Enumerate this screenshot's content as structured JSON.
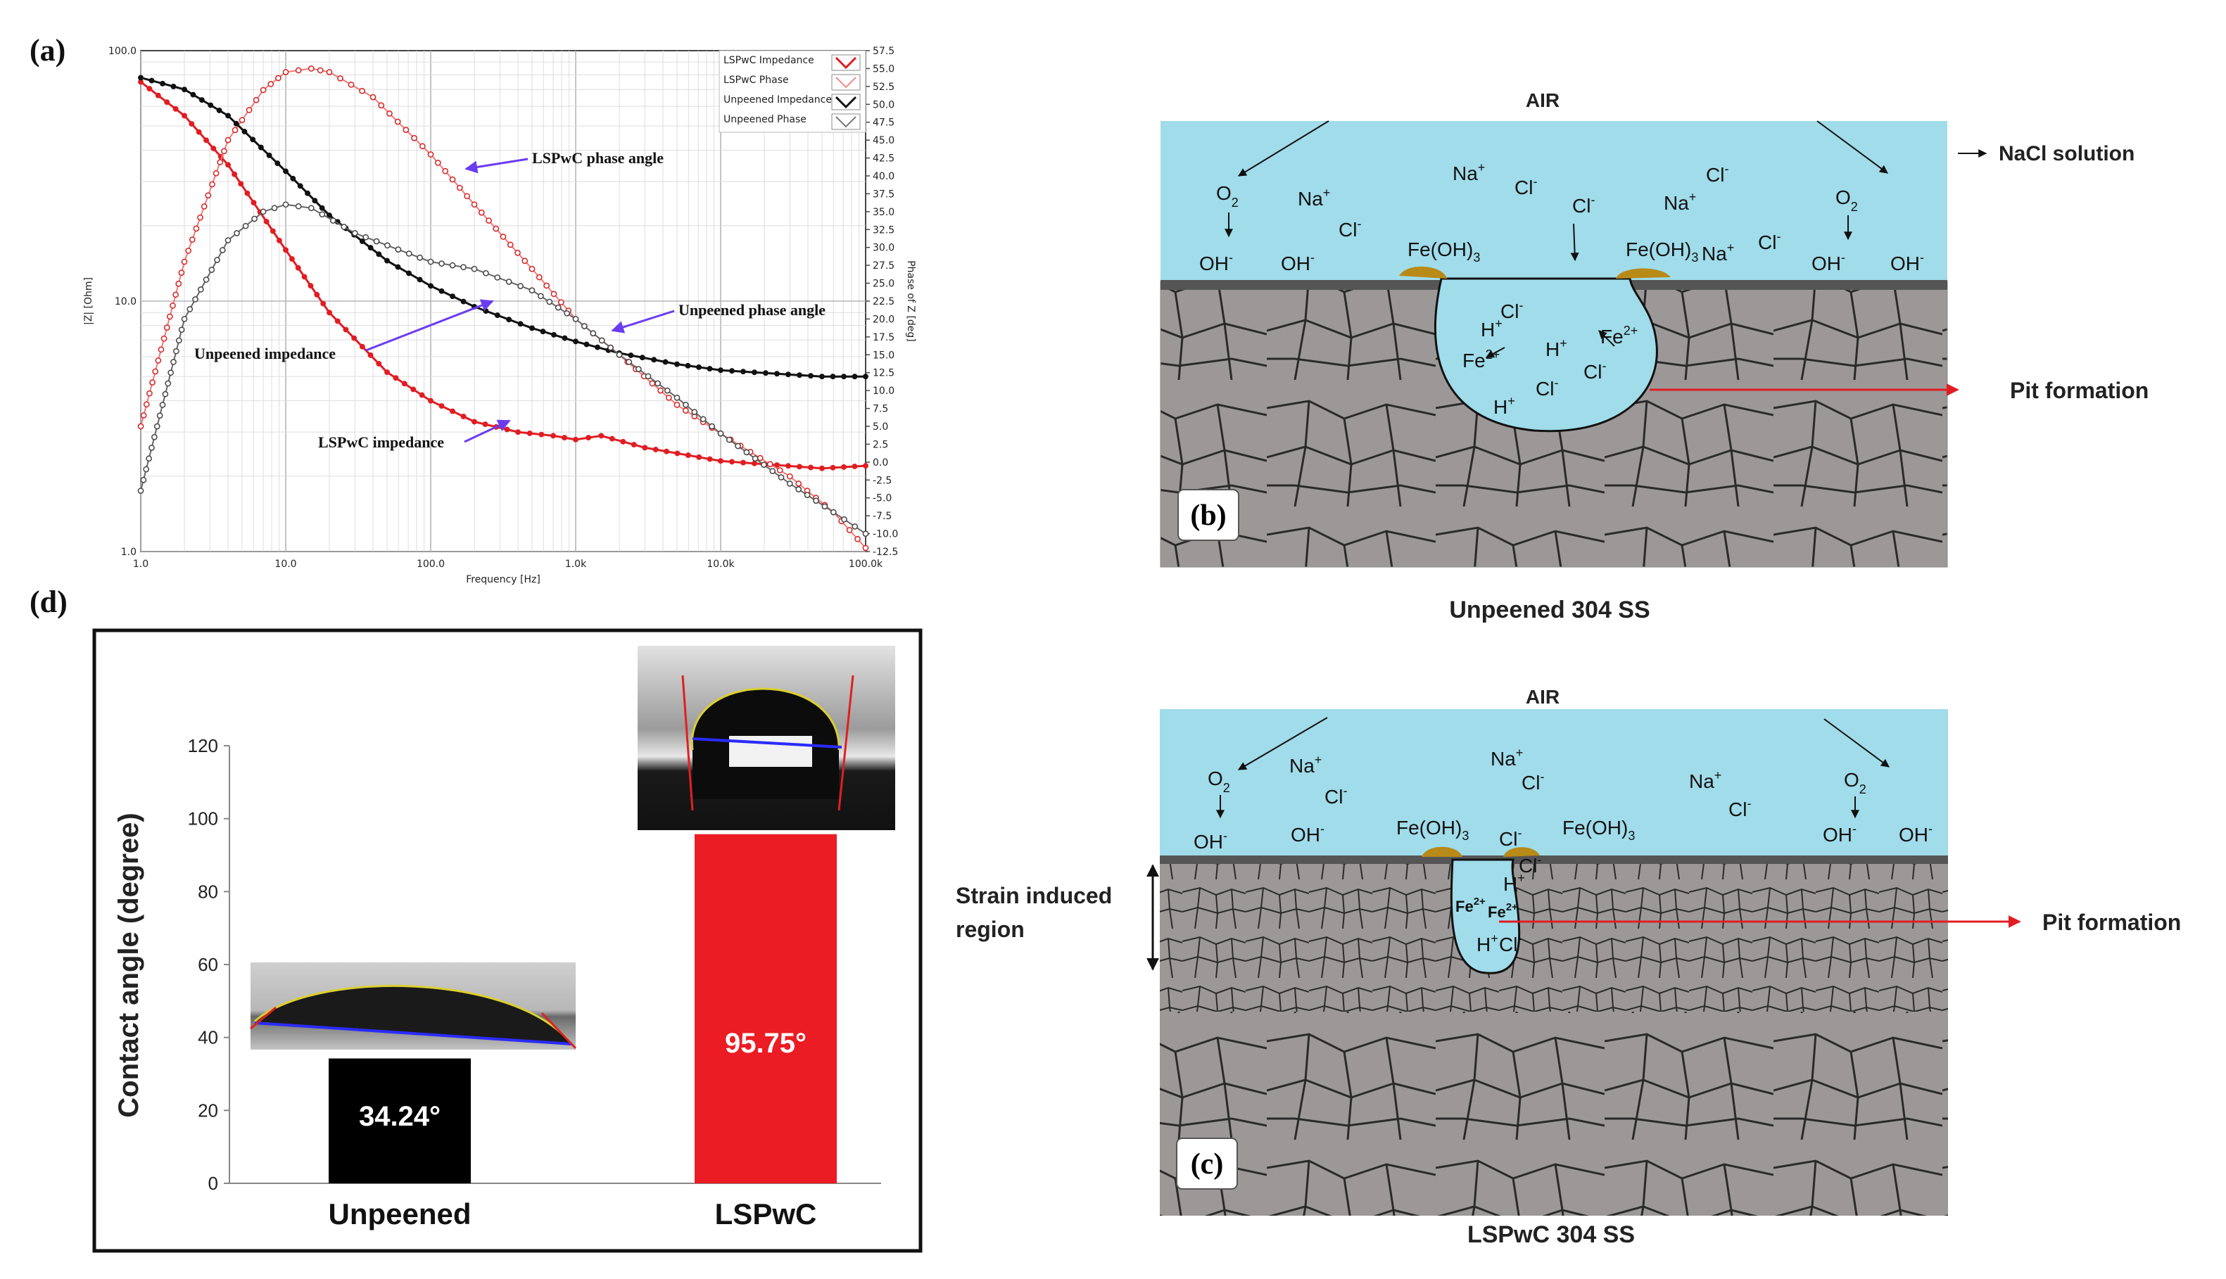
{
  "panels": {
    "a": "(a)",
    "b": "(b)",
    "c": "(c)",
    "d": "(d)"
  },
  "colors": {
    "lspwc": "#e11d22",
    "unpeened": "#111111",
    "solution": "#a0dcea",
    "grains": "#9a9696",
    "oxide": "#b88a18",
    "arrow_red": "#e11d22",
    "arrow_blue": "#6a3cf0"
  },
  "impedance_chart": {
    "annotations": {
      "lspwc_phase": "LSPwC phase angle",
      "unpeened_phase": "Unpeened phase angle",
      "unpeened_impedance": "Unpeened impedance",
      "lspwc_impedance": "LSPwC impedance"
    }
  },
  "diagram_b": {
    "air": "AIR",
    "nacl": "NaCl solution",
    "pit": "Pit formation",
    "caption": "Unpeened  304 SS"
  },
  "diagram_c": {
    "air": "AIR",
    "pit": "Pit formation",
    "strain_1": "Strain induced",
    "strain_2": "region",
    "caption": "LSPwC 304 SS"
  },
  "species": {
    "o2": "O",
    "na": "Na",
    "cl": "Cl",
    "oh": "OH",
    "feoh_a": "Fe(OH)",
    "feoh_sub": "3",
    "h": "H",
    "fe": "Fe",
    "plus": "+",
    "minus": "-",
    "sub2": "2",
    "two_plus": "2+"
  },
  "chart_data": [
    {
      "type": "line",
      "xlabel": "Frequency [Hz]",
      "ylabel": "|Z| [Ohm]",
      "y2label": "Phase of Z [deg]",
      "xscale": "log",
      "yscale": "log",
      "xlim": [
        1,
        100000
      ],
      "ylim": [
        1,
        100
      ],
      "y2lim": [
        -12.5,
        57.5
      ],
      "grid": true,
      "legend_position": "top-right",
      "x_tick_labels": [
        "1.0",
        "10.0",
        "100.0",
        "1.0k",
        "10.0k",
        "100.0k"
      ],
      "y_tick_labels": [
        "1.0",
        "10.0",
        "100.0"
      ],
      "y2_tick_labels": [
        "-12.5",
        "-10.0",
        "-7.5",
        "-5.0",
        "-2.5",
        "0.0",
        "2.5",
        "5.0",
        "7.5",
        "10.0",
        "12.5",
        "15.0",
        "17.5",
        "20.0",
        "22.5",
        "25.0",
        "27.5",
        "30.0",
        "32.5",
        "35.0",
        "37.5",
        "40.0",
        "42.5",
        "45.0",
        "47.5",
        "50.0",
        "52.5",
        "55.0",
        "57.5"
      ],
      "series": [
        {
          "name": "LSPwC Impedance",
          "axis": "left",
          "x": [
            1,
            2,
            4,
            10,
            20,
            50,
            100,
            200,
            400,
            700,
            1000,
            1500,
            3000,
            10000,
            50000,
            100000
          ],
          "y": [
            75,
            55,
            35,
            16,
            9,
            5.2,
            4.0,
            3.3,
            3.0,
            2.9,
            2.8,
            2.9,
            2.6,
            2.3,
            2.15,
            2.2
          ]
        },
        {
          "name": "LSPwC Phase",
          "axis": "right",
          "x": [
            1,
            2,
            4,
            7,
            10,
            15,
            20,
            40,
            100,
            200,
            500,
            1000,
            2000,
            5000,
            10000,
            30000,
            60000,
            100000
          ],
          "y": [
            5,
            28,
            45,
            52,
            54.5,
            55,
            54.5,
            51,
            43,
            36,
            27,
            20,
            15,
            8,
            4,
            -2,
            -7,
            -12
          ]
        },
        {
          "name": "Unpeened Impedance",
          "axis": "left",
          "x": [
            1,
            2,
            4,
            10,
            20,
            50,
            100,
            200,
            500,
            1000,
            2000,
            5000,
            10000,
            50000,
            100000
          ],
          "y": [
            78,
            70,
            55,
            33,
            22,
            14.5,
            11.5,
            9.5,
            7.8,
            6.9,
            6.2,
            5.6,
            5.3,
            5.0,
            5.0
          ]
        },
        {
          "name": "Unpeened Phase",
          "axis": "right",
          "x": [
            1,
            2,
            4,
            7,
            10,
            15,
            30,
            100,
            200,
            500,
            1000,
            2000,
            5000,
            10000,
            30000,
            60000,
            100000
          ],
          "y": [
            -4,
            20,
            31,
            35,
            36,
            35.5,
            32,
            28,
            27,
            24,
            20,
            15,
            9,
            4,
            -3,
            -7,
            -10
          ]
        }
      ]
    },
    {
      "type": "bar",
      "categories": [
        "Unpeened",
        "LSPwC"
      ],
      "values": [
        34.24,
        95.75
      ],
      "data_labels": [
        "34.24°",
        "95.75°"
      ],
      "ylabel": "Contact angle (degree)",
      "ylim": [
        0,
        120
      ],
      "y_ticks": [
        0,
        20,
        40,
        60,
        80,
        100,
        120
      ],
      "colors": [
        "#000000",
        "#ec1c24"
      ]
    }
  ]
}
